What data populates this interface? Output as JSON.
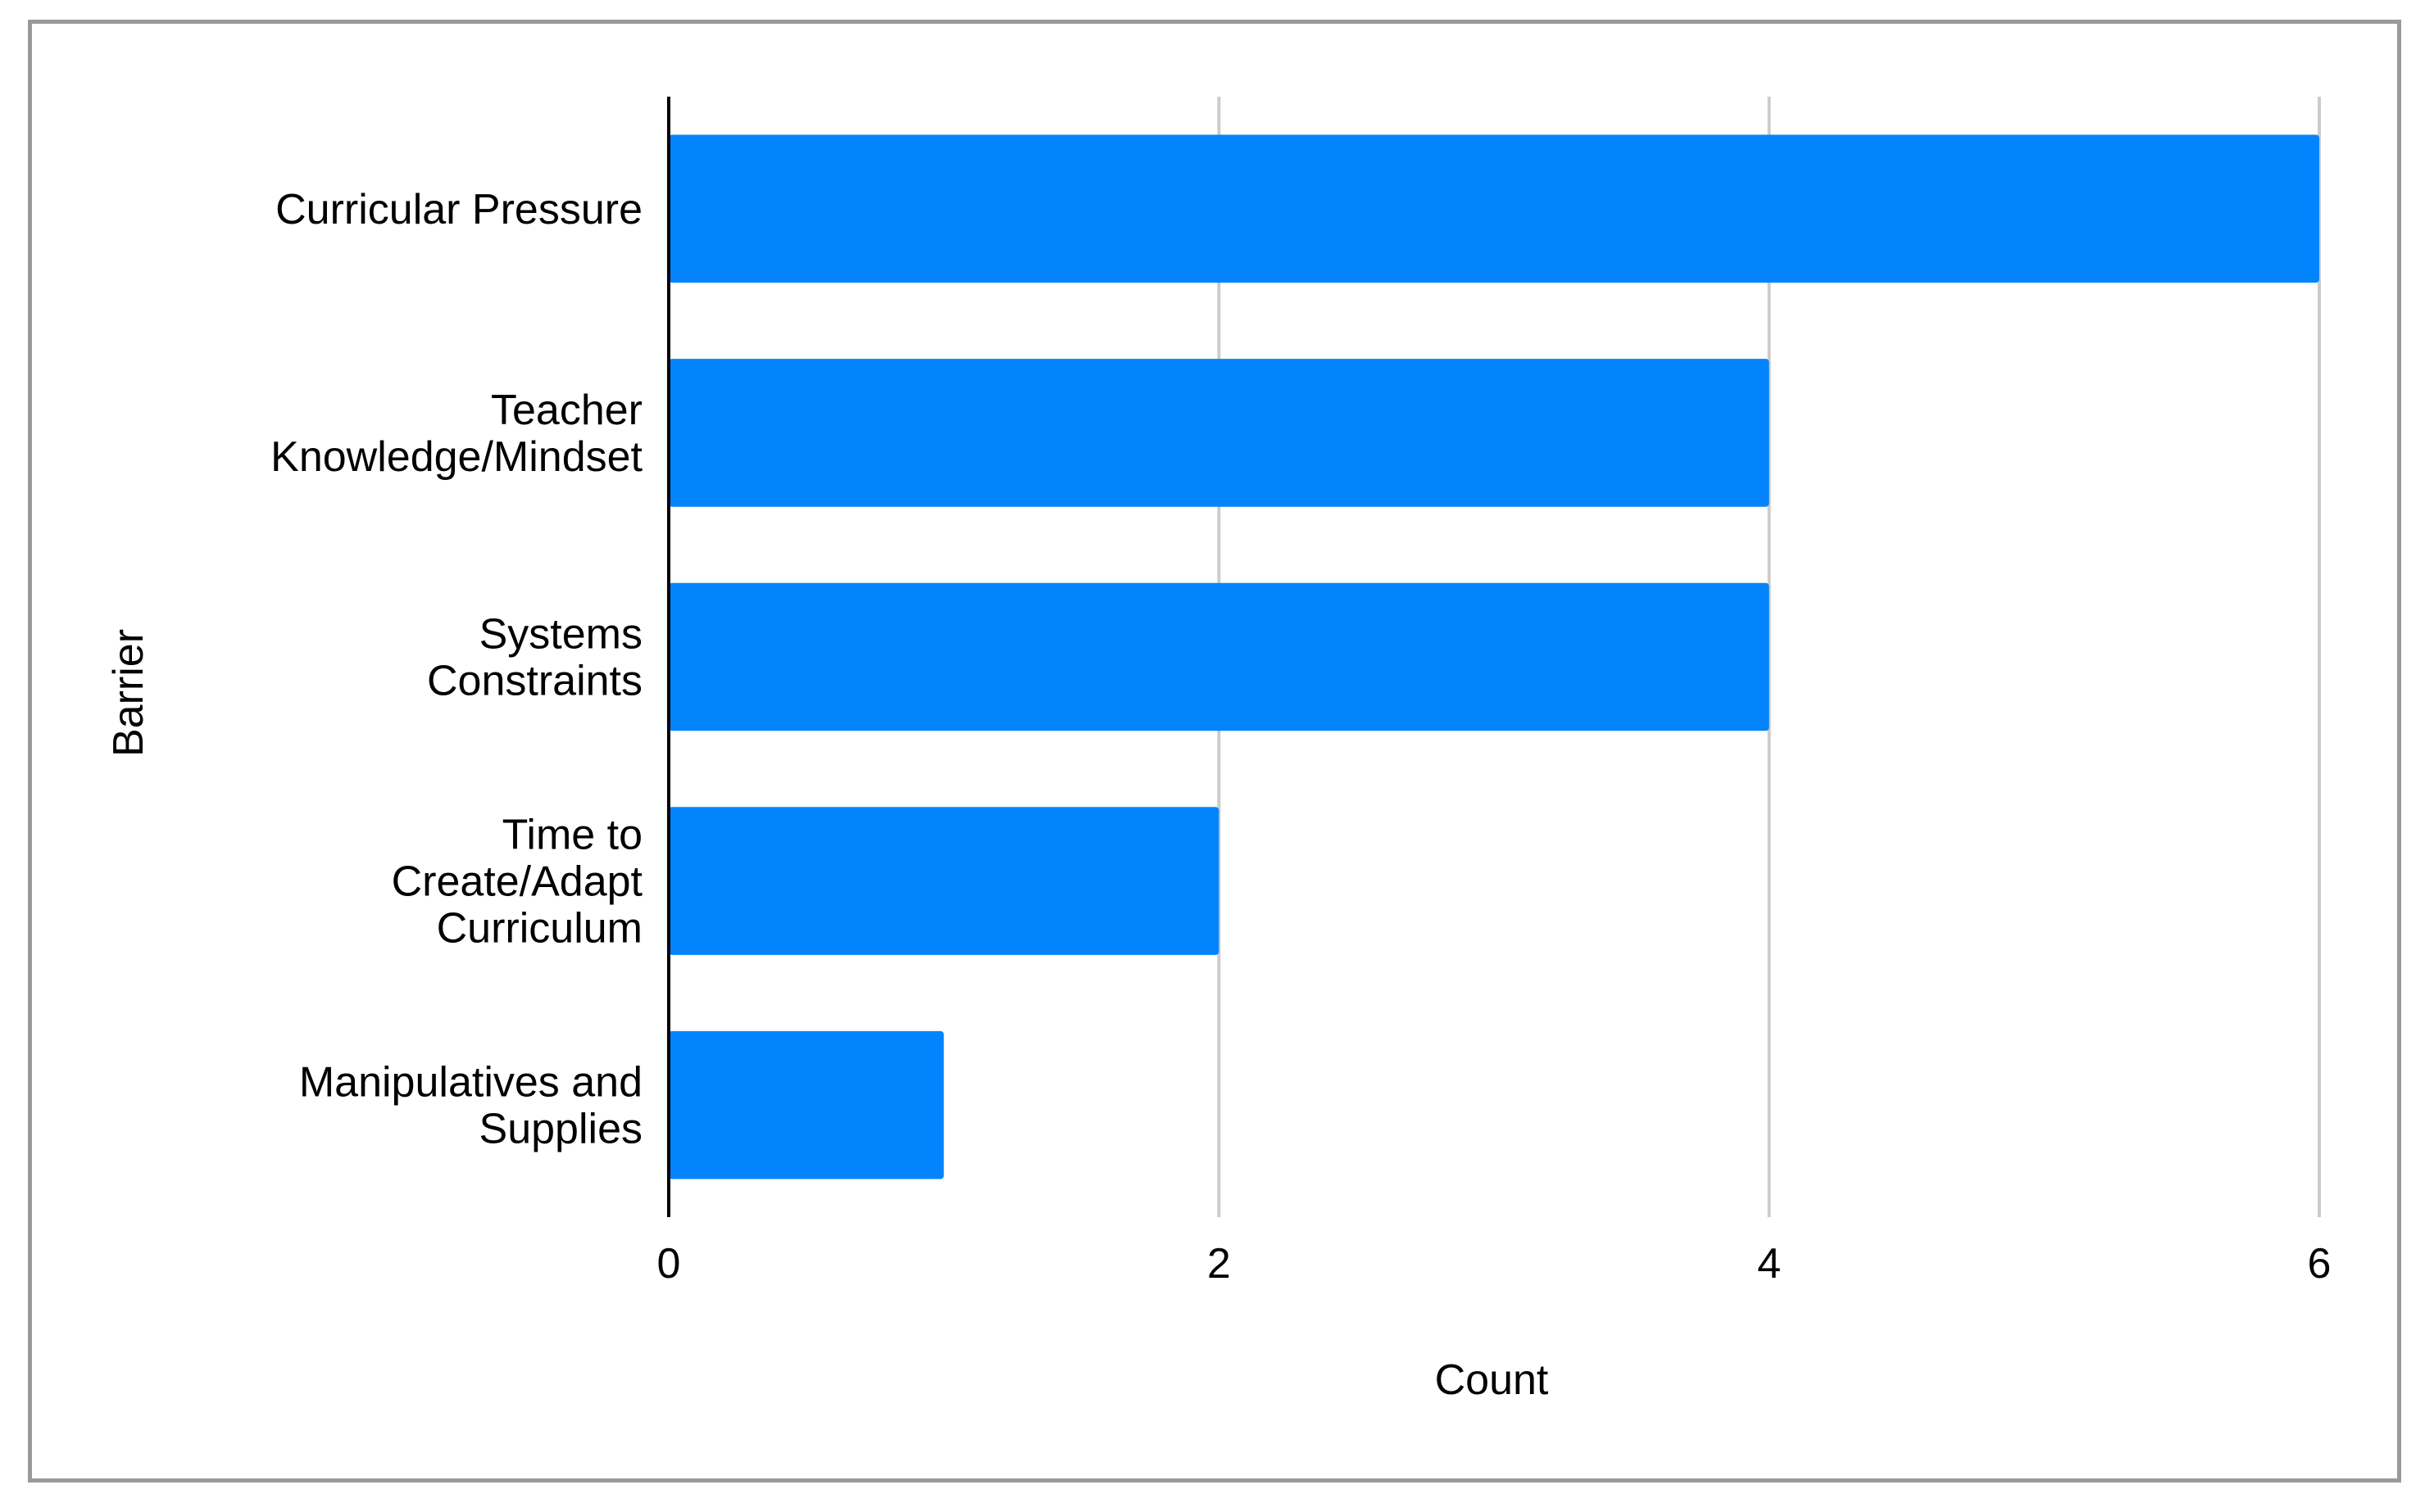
{
  "chart_data": {
    "type": "bar",
    "orientation": "horizontal",
    "categories": [
      [
        "Curricular Pressure"
      ],
      [
        "Teacher",
        "Knowledge/Mindset"
      ],
      [
        "Systems",
        "Constraints"
      ],
      [
        "Time to",
        "Create/Adapt",
        "Curriculum"
      ],
      [
        "Manipulatives and",
        "Supplies"
      ]
    ],
    "values": [
      6,
      4,
      4,
      2,
      1
    ],
    "xlabel": "Count",
    "ylabel": "Barrier",
    "xlim": [
      0,
      6
    ],
    "xticks": [
      "0",
      "2",
      "4",
      "6"
    ],
    "grid": true,
    "legend": "none",
    "colors": {
      "bar": "#0384fc",
      "grid": "#cccccc",
      "axis": "#000000",
      "frame": "#9a9a9a"
    }
  }
}
